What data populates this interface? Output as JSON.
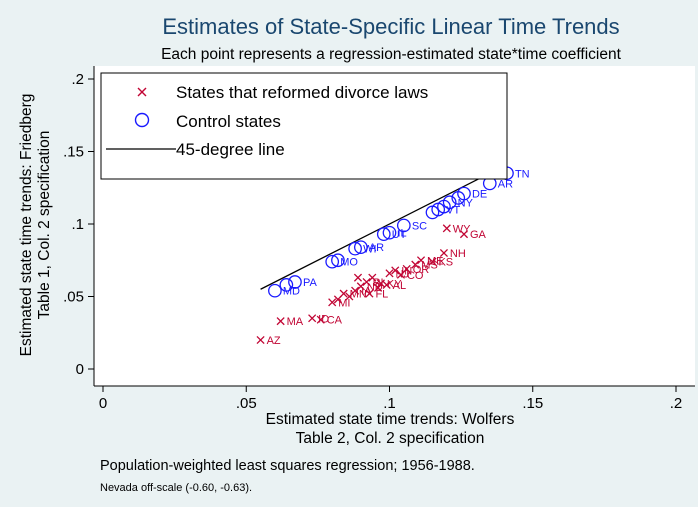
{
  "chart_data": {
    "type": "scatter",
    "title": "Estimates of State-Specific Linear Time Trends",
    "subtitle": "Each point represents a regression-estimated state*time coefficient",
    "xlabel": [
      "Estimated state time trends: Wolfers",
      "Table 2, Col. 2 specification"
    ],
    "ylabel": [
      "Estimated state time trends: Friedberg",
      "Table 1, Col. 2 specification"
    ],
    "xlim": [
      0,
      0.2
    ],
    "ylim": [
      0,
      0.2
    ],
    "xticks": [
      0,
      0.05,
      0.1,
      0.15,
      0.2
    ],
    "xtick_labels": [
      "0",
      ".05",
      ".1",
      ".15",
      ".2"
    ],
    "yticks": [
      0,
      0.05,
      0.1,
      0.15,
      0.2
    ],
    "ytick_labels": [
      "0",
      ".05",
      ".1",
      ".15",
      ".2"
    ],
    "grid": false,
    "legend_position": "top-left",
    "line": {
      "name": "45-degree line",
      "x": [
        0.055,
        0.141
      ],
      "y": [
        0.055,
        0.141
      ],
      "color": "#000000"
    },
    "series": [
      {
        "name": "States that reformed divorce laws",
        "marker": "x",
        "color": "#c10534",
        "points": [
          {
            "x": 0.055,
            "y": 0.02,
            "label": "AZ"
          },
          {
            "x": 0.062,
            "y": 0.033,
            "label": "MA"
          },
          {
            "x": 0.073,
            "y": 0.035,
            "label": "ID"
          },
          {
            "x": 0.076,
            "y": 0.034,
            "label": "CA"
          },
          {
            "x": 0.08,
            "y": 0.046,
            "label": "MI"
          },
          {
            "x": 0.082,
            "y": 0.048,
            "label": ""
          },
          {
            "x": 0.084,
            "y": 0.052,
            "label": "MN"
          },
          {
            "x": 0.086,
            "y": 0.05,
            "label": ""
          },
          {
            "x": 0.088,
            "y": 0.054,
            "label": "IA"
          },
          {
            "x": 0.089,
            "y": 0.063,
            "label": ""
          },
          {
            "x": 0.09,
            "y": 0.057,
            "label": "ND"
          },
          {
            "x": 0.092,
            "y": 0.06,
            "label": "RI"
          },
          {
            "x": 0.093,
            "y": 0.052,
            "label": "FL"
          },
          {
            "x": 0.094,
            "y": 0.063,
            "label": ""
          },
          {
            "x": 0.096,
            "y": 0.056,
            "label": ""
          },
          {
            "x": 0.097,
            "y": 0.059,
            "label": "KY"
          },
          {
            "x": 0.099,
            "y": 0.058,
            "label": "AL"
          },
          {
            "x": 0.1,
            "y": 0.066,
            "label": "NJ"
          },
          {
            "x": 0.102,
            "y": 0.068,
            "label": "IN"
          },
          {
            "x": 0.104,
            "y": 0.065,
            "label": "CO"
          },
          {
            "x": 0.106,
            "y": 0.069,
            "label": "OR"
          },
          {
            "x": 0.109,
            "y": 0.072,
            "label": "MS"
          },
          {
            "x": 0.111,
            "y": 0.075,
            "label": "ME"
          },
          {
            "x": 0.115,
            "y": 0.074,
            "label": "KS"
          },
          {
            "x": 0.119,
            "y": 0.08,
            "label": "NH"
          },
          {
            "x": 0.12,
            "y": 0.097,
            "label": "WY"
          },
          {
            "x": 0.126,
            "y": 0.093,
            "label": "GA"
          }
        ]
      },
      {
        "name": "Control states",
        "marker": "circle",
        "color": "#1a1aff",
        "points": [
          {
            "x": 0.06,
            "y": 0.054,
            "label": "MD"
          },
          {
            "x": 0.064,
            "y": 0.058,
            "label": ""
          },
          {
            "x": 0.067,
            "y": 0.06,
            "label": "PA"
          },
          {
            "x": 0.08,
            "y": 0.074,
            "label": "MO"
          },
          {
            "x": 0.082,
            "y": 0.075,
            "label": ""
          },
          {
            "x": 0.088,
            "y": 0.083,
            "label": "WI"
          },
          {
            "x": 0.09,
            "y": 0.084,
            "label": "AR"
          },
          {
            "x": 0.098,
            "y": 0.093,
            "label": "UT"
          },
          {
            "x": 0.1,
            "y": 0.094,
            "label": "IL"
          },
          {
            "x": 0.105,
            "y": 0.099,
            "label": "SC"
          },
          {
            "x": 0.115,
            "y": 0.108,
            "label": ""
          },
          {
            "x": 0.117,
            "y": 0.11,
            "label": "VT"
          },
          {
            "x": 0.119,
            "y": 0.112,
            "label": ""
          },
          {
            "x": 0.121,
            "y": 0.115,
            "label": "NY"
          },
          {
            "x": 0.124,
            "y": 0.118,
            "label": ""
          },
          {
            "x": 0.126,
            "y": 0.121,
            "label": "DE"
          },
          {
            "x": 0.135,
            "y": 0.128,
            "label": "AR"
          },
          {
            "x": 0.141,
            "y": 0.135,
            "label": "TN"
          }
        ]
      }
    ]
  },
  "legend": {
    "items": [
      {
        "label": "States that reformed divorce laws"
      },
      {
        "label": "Control states"
      },
      {
        "label": "45-degree line"
      }
    ]
  },
  "notes": {
    "line1": "Population-weighted least squares regression; 1956-1988.",
    "line2": "Nevada off-scale (-0.60, -0.63)."
  }
}
